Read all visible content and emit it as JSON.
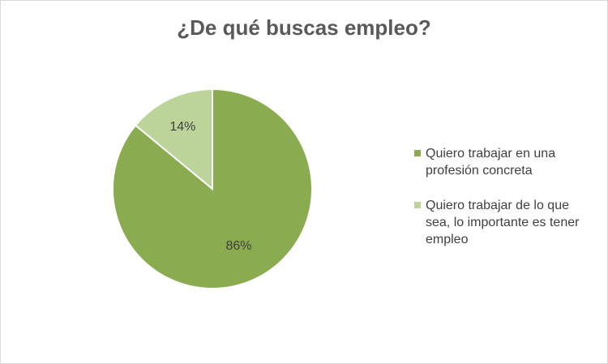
{
  "chart_data": {
    "type": "pie",
    "title": "¿De qué buscas empleo?",
    "categories": [
      "Quiero trabajar en una profesión concreta",
      "Quiero trabajar de lo que sea, lo importante es tener empleo"
    ],
    "values": [
      86,
      14
    ],
    "data_labels": [
      "86%",
      "14%"
    ],
    "colors": [
      "#8aab4f",
      "#bcd39a"
    ],
    "legend_position": "right"
  }
}
